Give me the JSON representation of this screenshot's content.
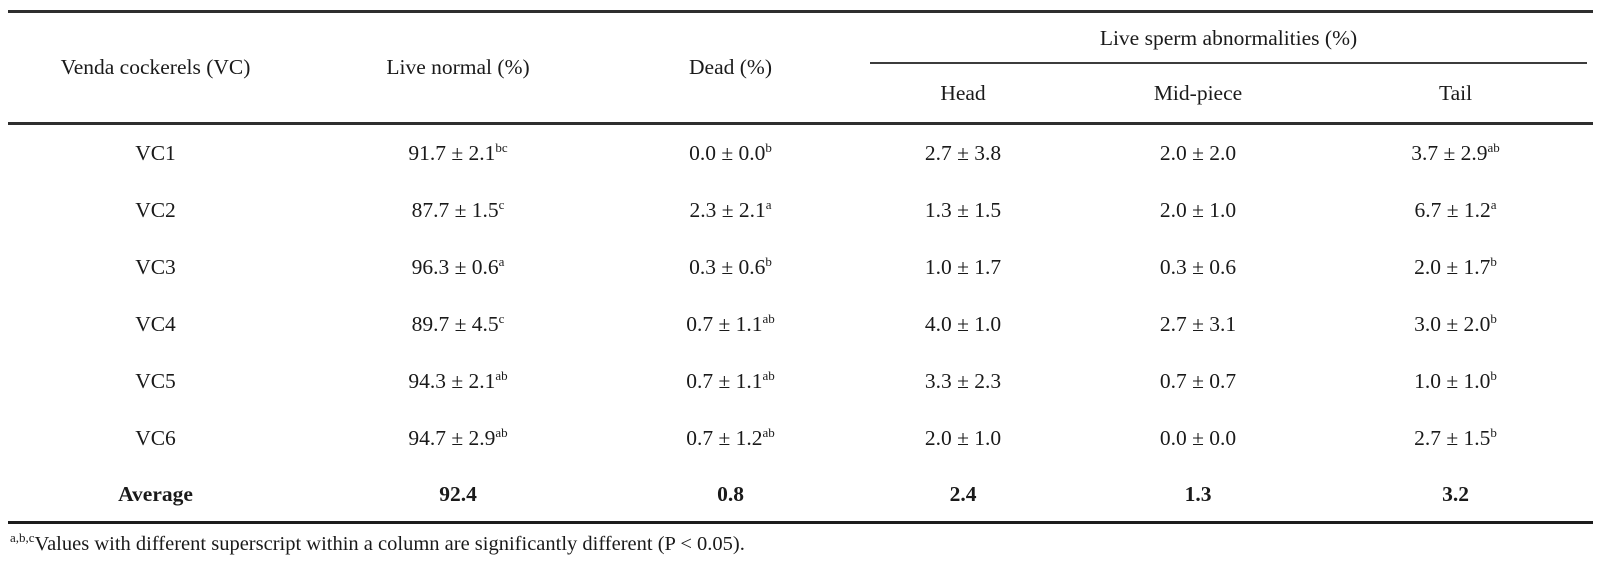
{
  "colors": {
    "background": "#ffffff",
    "text": "#1a1a1a",
    "rule": "#2e2e2e"
  },
  "table": {
    "header": {
      "col_venda": "Venda cockerels (VC)",
      "col_live_normal": "Live normal (%)",
      "col_dead": "Dead (%)",
      "span_group": "Live sperm abnormalities (%)",
      "sub_head": "Head",
      "sub_mid": "Mid-piece",
      "sub_tail": "Tail"
    },
    "rows": [
      {
        "label": "VC1",
        "cells": [
          {
            "v": "91.7 ± 2.1",
            "s": "bc"
          },
          {
            "v": "0.0 ± 0.0",
            "s": "b"
          },
          {
            "v": "2.7 ± 3.8",
            "s": ""
          },
          {
            "v": "2.0 ± 2.0",
            "s": ""
          },
          {
            "v": "3.7 ± 2.9",
            "s": "ab"
          }
        ]
      },
      {
        "label": "VC2",
        "cells": [
          {
            "v": "87.7 ± 1.5",
            "s": "c"
          },
          {
            "v": "2.3 ± 2.1",
            "s": "a"
          },
          {
            "v": "1.3 ± 1.5",
            "s": ""
          },
          {
            "v": "2.0 ± 1.0",
            "s": ""
          },
          {
            "v": "6.7 ± 1.2",
            "s": "a"
          }
        ]
      },
      {
        "label": "VC3",
        "cells": [
          {
            "v": "96.3 ± 0.6",
            "s": "a"
          },
          {
            "v": "0.3 ± 0.6",
            "s": "b"
          },
          {
            "v": "1.0 ± 1.7",
            "s": ""
          },
          {
            "v": "0.3 ± 0.6",
            "s": ""
          },
          {
            "v": "2.0 ± 1.7",
            "s": "b"
          }
        ]
      },
      {
        "label": "VC4",
        "cells": [
          {
            "v": "89.7 ± 4.5",
            "s": "c"
          },
          {
            "v": "0.7 ± 1.1",
            "s": "ab"
          },
          {
            "v": "4.0 ± 1.0",
            "s": ""
          },
          {
            "v": "2.7 ± 3.1",
            "s": ""
          },
          {
            "v": "3.0 ± 2.0",
            "s": "b"
          }
        ]
      },
      {
        "label": "VC5",
        "cells": [
          {
            "v": "94.3 ± 2.1",
            "s": "ab"
          },
          {
            "v": "0.7 ± 1.1",
            "s": "ab"
          },
          {
            "v": "3.3 ± 2.3",
            "s": ""
          },
          {
            "v": "0.7 ± 0.7",
            "s": ""
          },
          {
            "v": "1.0 ± 1.0",
            "s": "b"
          }
        ]
      },
      {
        "label": "VC6",
        "cells": [
          {
            "v": "94.7 ± 2.9",
            "s": "ab"
          },
          {
            "v": "0.7 ± 1.2",
            "s": "ab"
          },
          {
            "v": "2.0 ± 1.0",
            "s": ""
          },
          {
            "v": "0.0 ± 0.0",
            "s": ""
          },
          {
            "v": "2.7 ± 1.5",
            "s": "b"
          }
        ]
      }
    ],
    "average": {
      "label": "Average",
      "cells": [
        "92.4",
        "0.8",
        "2.4",
        "1.3",
        "3.2"
      ]
    },
    "footnote": {
      "sup": "a,b,c",
      "text": "Values with different superscript within a column are significantly different (P < 0.05)."
    }
  }
}
